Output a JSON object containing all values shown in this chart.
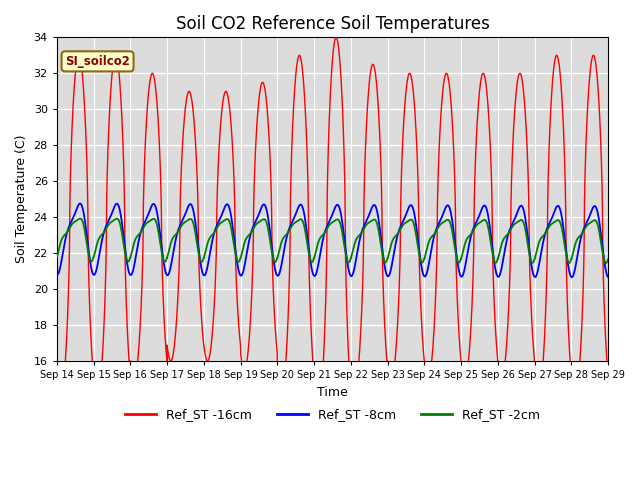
{
  "title": "Soil CO2 Reference Soil Temperatures",
  "xlabel": "Time",
  "ylabel": "Soil Temperature (C)",
  "ylim": [
    16,
    34
  ],
  "yticks": [
    16,
    18,
    20,
    22,
    24,
    26,
    28,
    30,
    32,
    34
  ],
  "x_labels": [
    "Sep 14",
    "Sep 15",
    "Sep 16",
    "Sep 17",
    "Sep 18",
    "Sep 19",
    "Sep 20",
    "Sep 21",
    "Sep 22",
    "Sep 23",
    "Sep 24",
    "Sep 25",
    "Sep 26",
    "Sep 27",
    "Sep 28",
    "Sep 29"
  ],
  "legend_label": "SI_soilco2",
  "series_labels": [
    "Ref_ST -16cm",
    "Ref_ST -8cm",
    "Ref_ST -2cm"
  ],
  "colors": [
    "red",
    "blue",
    "green"
  ],
  "background_color": "#dcdcdc",
  "title_fontsize": 12,
  "axis_label_fontsize": 9,
  "tick_fontsize": 8
}
